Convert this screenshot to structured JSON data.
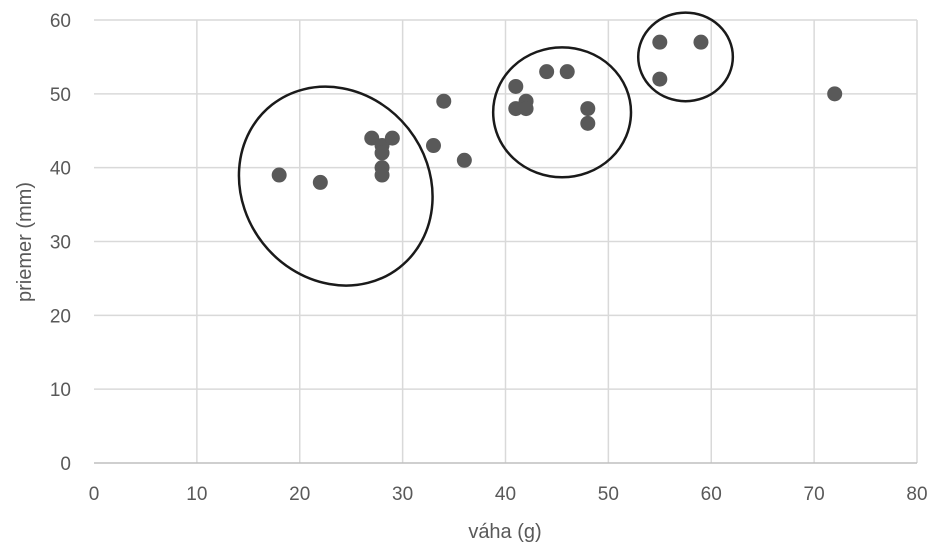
{
  "chart_data": {
    "type": "scatter",
    "xlabel": "váha (g)",
    "ylabel": "priemer (mm)",
    "xlim": [
      0,
      80
    ],
    "ylim": [
      0,
      60
    ],
    "x_ticks": [
      0,
      10,
      20,
      30,
      40,
      50,
      60,
      70,
      80
    ],
    "y_ticks": [
      0,
      10,
      20,
      30,
      40,
      50,
      60
    ],
    "grid": true,
    "point_color": "#595959",
    "series": [
      {
        "points": [
          {
            "x": 18,
            "y": 39
          },
          {
            "x": 22,
            "y": 38
          },
          {
            "x": 27,
            "y": 44
          },
          {
            "x": 28,
            "y": 43
          },
          {
            "x": 28,
            "y": 42
          },
          {
            "x": 28,
            "y": 40
          },
          {
            "x": 28,
            "y": 39
          },
          {
            "x": 29,
            "y": 44
          },
          {
            "x": 33,
            "y": 43
          },
          {
            "x": 34,
            "y": 49
          },
          {
            "x": 36,
            "y": 41
          },
          {
            "x": 41,
            "y": 51
          },
          {
            "x": 41,
            "y": 48
          },
          {
            "x": 42,
            "y": 49
          },
          {
            "x": 42,
            "y": 48
          },
          {
            "x": 44,
            "y": 53
          },
          {
            "x": 46,
            "y": 53
          },
          {
            "x": 48,
            "y": 48
          },
          {
            "x": 48,
            "y": 46
          },
          {
            "x": 55,
            "y": 57
          },
          {
            "x": 55,
            "y": 52
          },
          {
            "x": 59,
            "y": 57
          },
          {
            "x": 72,
            "y": 50
          }
        ]
      }
    ],
    "annotations": [
      {
        "shape": "ellipse",
        "center": {
          "x": 23.5,
          "y": 37.5
        },
        "rx": 9.0,
        "ry": 14.0,
        "rotation": -38
      },
      {
        "shape": "ellipse",
        "center": {
          "x": 45.5,
          "y": 47.5
        },
        "rx": 6.7,
        "ry": 8.8,
        "rotation": 0
      },
      {
        "shape": "ellipse",
        "center": {
          "x": 57.5,
          "y": 55
        },
        "rx": 4.6,
        "ry": 6.0,
        "rotation": 0
      }
    ]
  }
}
